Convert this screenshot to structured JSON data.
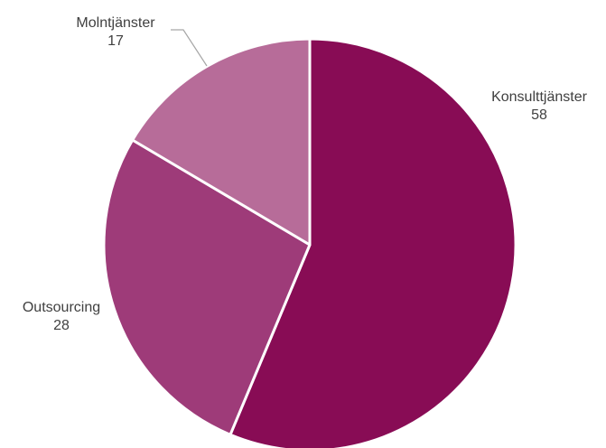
{
  "chart_data": {
    "type": "pie",
    "title": "",
    "slices": [
      {
        "label": "Konsulttjänster",
        "value": 58,
        "color": "#880c55"
      },
      {
        "label": "Outsourcing",
        "value": 28,
        "color": "#9e3b79"
      },
      {
        "label": "Molntjänster",
        "value": 17,
        "color": "#b76c99"
      }
    ],
    "start_angle_deg": 0,
    "direction": "clockwise",
    "legend": "none",
    "data_labels": "category name and value, outside end"
  }
}
